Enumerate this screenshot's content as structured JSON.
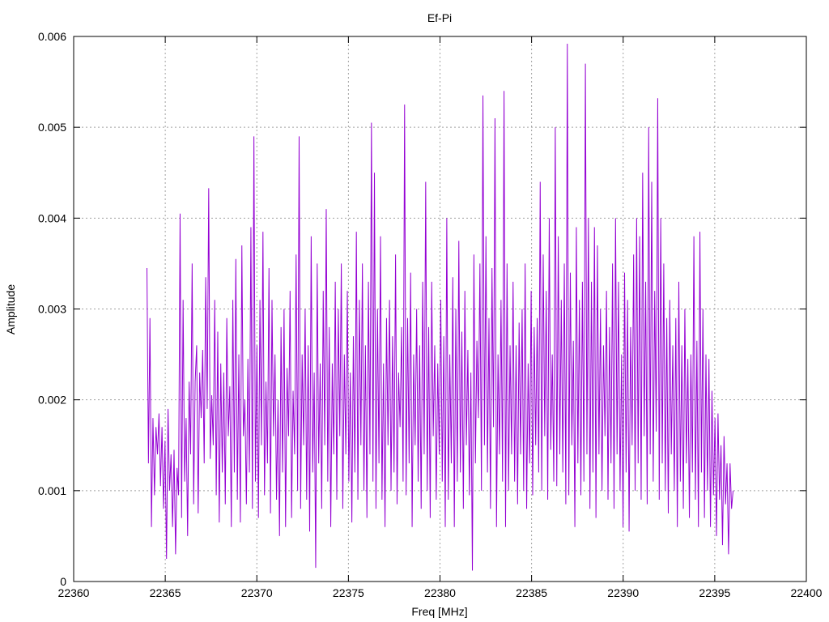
{
  "chart_data": {
    "type": "line",
    "title": "Ef-Pi",
    "xlabel": "Freq [MHz]",
    "ylabel": "Amplitude",
    "xlim": [
      22360,
      22400
    ],
    "ylim": [
      0,
      0.006
    ],
    "xticks": [
      22360,
      22365,
      22370,
      22375,
      22380,
      22385,
      22390,
      22395,
      22400
    ],
    "yticks": [
      0,
      0.001,
      0.002,
      0.003,
      0.004,
      0.005,
      0.006
    ],
    "ytick_labels": [
      "0",
      "0.001",
      "0.002",
      "0.003",
      "0.004",
      "0.005",
      "0.006"
    ],
    "grid": true,
    "legend": "none",
    "series": [
      {
        "color": "#9400d3",
        "x_start": 22364.0,
        "x_end": 22396.0,
        "y": [
          0.00345,
          0.0013,
          0.0029,
          0.0006,
          0.0018,
          0.00095,
          0.0017,
          0.0014,
          0.00185,
          0.00105,
          0.0017,
          0.0008,
          0.00155,
          0.00025,
          0.0019,
          0.001,
          0.0014,
          0.0006,
          0.00145,
          0.0003,
          0.00125,
          0.00095,
          0.00405,
          0.0007,
          0.0031,
          0.0011,
          0.0018,
          0.0005,
          0.0022,
          0.0014,
          0.0035,
          0.00085,
          0.0022,
          0.0026,
          0.00075,
          0.0023,
          0.0018,
          0.00255,
          0.0013,
          0.00335,
          0.0019,
          0.00433,
          0.00135,
          0.00205,
          0.0015,
          0.0031,
          0.00095,
          0.00275,
          0.00065,
          0.0024,
          0.0012,
          0.0023,
          0.00085,
          0.0029,
          0.0016,
          0.00215,
          0.0006,
          0.0031,
          0.0012,
          0.00355,
          0.0009,
          0.0025,
          0.00065,
          0.0037,
          0.0016,
          0.002,
          0.00085,
          0.00245,
          0.0012,
          0.0039,
          0.0008,
          0.0049,
          0.0011,
          0.0026,
          0.0007,
          0.0031,
          0.0015,
          0.00385,
          0.00095,
          0.0022,
          0.0013,
          0.00345,
          0.00075,
          0.0031,
          0.0016,
          0.0025,
          0.0009,
          0.002,
          0.0005,
          0.0028,
          0.0012,
          0.003,
          0.0006,
          0.00235,
          0.0016,
          0.0032,
          0.0007,
          0.0021,
          0.0014,
          0.0036,
          0.001,
          0.0049,
          0.0008,
          0.0025,
          0.0015,
          0.003,
          0.0009,
          0.0026,
          0.00055,
          0.0038,
          0.0012,
          0.0023,
          0.00015,
          0.0035,
          0.0013,
          0.0024,
          0.0008,
          0.0032,
          0.0015,
          0.0041,
          0.0011,
          0.0028,
          0.0006,
          0.0024,
          0.0014,
          0.0033,
          0.0009,
          0.003,
          0.0016,
          0.0035,
          0.0008,
          0.0025,
          0.0014,
          0.0032,
          0.0011,
          0.0023,
          0.00065,
          0.0027,
          0.0012,
          0.00385,
          0.0009,
          0.0031,
          0.0015,
          0.0035,
          0.001,
          0.0026,
          0.0007,
          0.0033,
          0.0014,
          0.00505,
          0.0011,
          0.0045,
          0.0008,
          0.003,
          0.0013,
          0.0038,
          0.0009,
          0.0024,
          0.0006,
          0.0029,
          0.0015,
          0.0031,
          0.001,
          0.0027,
          0.0012,
          0.0036,
          0.00085,
          0.0023,
          0.0017,
          0.0028,
          0.0011,
          0.00525,
          0.00095,
          0.0029,
          0.0013,
          0.0034,
          0.0006,
          0.0025,
          0.0015,
          0.003,
          0.0011,
          0.0026,
          0.0008,
          0.0033,
          0.0014,
          0.0044,
          0.001,
          0.0028,
          0.0007,
          0.0033,
          0.0016,
          0.0026,
          0.0009,
          0.0024,
          0.0014,
          0.0031,
          0.0011,
          0.0027,
          0.0006,
          0.004,
          0.0009,
          0.0025,
          0.0013,
          0.00335,
          0.0006,
          0.003,
          0.0011,
          0.00375,
          0.0012,
          0.00275,
          0.0008,
          0.0032,
          0.0015,
          0.00255,
          0.00095,
          0.0023,
          0.00012,
          0.0036,
          0.0013,
          0.00265,
          0.0018,
          0.0035,
          0.001,
          0.00535,
          0.0015,
          0.0038,
          0.0012,
          0.0029,
          0.0008,
          0.00345,
          0.0017,
          0.0051,
          0.0006,
          0.0025,
          0.0014,
          0.0031,
          0.0011,
          0.0054,
          0.0006,
          0.0035,
          0.001,
          0.0026,
          0.0014,
          0.0033,
          0.0011,
          0.0026,
          0.00085,
          0.00285,
          0.0014,
          0.003,
          0.001,
          0.0035,
          0.0008,
          0.0024,
          0.0013,
          0.0032,
          0.00095,
          0.0028,
          0.0015,
          0.0029,
          0.0012,
          0.0044,
          0.001,
          0.0036,
          0.0016,
          0.0032,
          0.0009,
          0.004,
          0.00145,
          0.0025,
          0.0011,
          0.005,
          0.00105,
          0.0038,
          0.0014,
          0.0031,
          0.0012,
          0.0035,
          0.00085,
          0.00592,
          0.00095,
          0.0034,
          0.0015,
          0.00265,
          0.0006,
          0.0039,
          0.0013,
          0.0031,
          0.00095,
          0.0033,
          0.0011,
          0.0057,
          0.0014,
          0.004,
          0.0008,
          0.0033,
          0.0012,
          0.0039,
          0.0007,
          0.0037,
          0.0014,
          0.003,
          0.001,
          0.0026,
          0.0016,
          0.0032,
          0.0009,
          0.0028,
          0.0013,
          0.0035,
          0.0008,
          0.004,
          0.0014,
          0.0033,
          0.001,
          0.0025,
          0.0006,
          0.0034,
          0.0012,
          0.0031,
          0.00055,
          0.0028,
          0.0015,
          0.0036,
          0.001,
          0.004,
          0.0013,
          0.0038,
          0.0009,
          0.0045,
          0.0016,
          0.0033,
          0.00085,
          0.005,
          0.0014,
          0.0044,
          0.0011,
          0.0032,
          0.00165,
          0.00532,
          0.0009,
          0.004,
          0.0013,
          0.0035,
          0.001,
          0.0029,
          0.00075,
          0.0031,
          0.0014,
          0.0026,
          0.001,
          0.0029,
          0.0006,
          0.0033,
          0.0011,
          0.0026,
          0.0008,
          0.003,
          0.0013,
          0.00245,
          0.0007,
          0.0025,
          0.0012,
          0.0038,
          0.0009,
          0.00265,
          0.0006,
          0.00385,
          0.0012,
          0.003,
          0.0007,
          0.0025,
          0.001,
          0.00245,
          0.0006,
          0.0021,
          0.00095,
          0.0018,
          0.0005,
          0.00185,
          0.0009,
          0.0015,
          0.0004,
          0.0016,
          0.00085,
          0.0013,
          0.0003,
          0.0013,
          0.0008,
          0.001
        ]
      }
    ]
  }
}
